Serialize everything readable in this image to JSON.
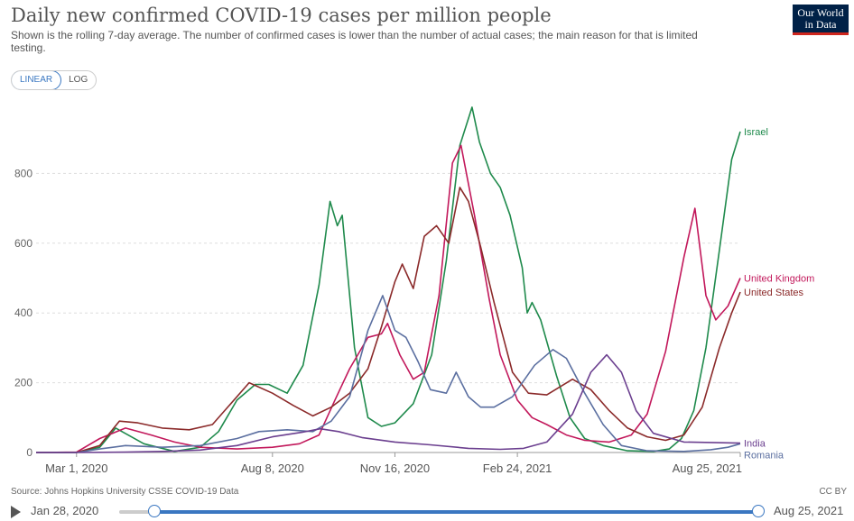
{
  "header": {
    "title": "Daily new confirmed COVID-19 cases per million people",
    "subtitle": "Shown is the rolling 7-day average. The number of confirmed cases is lower than the number of actual cases; the main reason for that is limited testing.",
    "logo_line1": "Our World",
    "logo_line2": "in Data"
  },
  "controls": {
    "linear_label": "LINEAR",
    "log_label": "LOG",
    "selected": "linear"
  },
  "footer": {
    "source": "Source: Johns Hopkins University CSSE COVID-19 Data",
    "license": "CC BY"
  },
  "timeline": {
    "start_label": "Jan 28, 2020",
    "end_label": "Aug 25, 2021"
  },
  "colors": {
    "Israel": "#1f8a4c",
    "United Kingdom": "#c2185b",
    "United States": "#8b2a2a",
    "Romania": "#5b6fa0",
    "India": "#6b3f8f",
    "grid": "#dddddd",
    "axis": "#999999"
  },
  "chart_data": {
    "type": "line",
    "title": "Daily new confirmed COVID-19 cases per million people",
    "ylim": [
      0,
      1000
    ],
    "yticks": [
      0,
      200,
      400,
      600,
      800
    ],
    "xlim": [
      "2020-01-28",
      "2021-08-25"
    ],
    "xticks": [
      {
        "date": "2020-03-01",
        "label": "Mar 1, 2020"
      },
      {
        "date": "2020-08-08",
        "label": "Aug 8, 2020"
      },
      {
        "date": "2020-11-16",
        "label": "Nov 16, 2020"
      },
      {
        "date": "2021-02-24",
        "label": "Feb 24, 2021"
      },
      {
        "date": "2021-08-25",
        "label": "Aug 25, 2021"
      }
    ],
    "series": [
      {
        "name": "Israel",
        "points": [
          [
            "2020-01-28",
            0
          ],
          [
            "2020-03-01",
            0
          ],
          [
            "2020-03-20",
            15
          ],
          [
            "2020-04-02",
            70
          ],
          [
            "2020-04-25",
            25
          ],
          [
            "2020-05-20",
            3
          ],
          [
            "2020-06-10",
            15
          ],
          [
            "2020-06-25",
            60
          ],
          [
            "2020-07-10",
            150
          ],
          [
            "2020-07-25",
            195
          ],
          [
            "2020-08-05",
            195
          ],
          [
            "2020-08-20",
            170
          ],
          [
            "2020-09-02",
            250
          ],
          [
            "2020-09-15",
            480
          ],
          [
            "2020-09-24",
            720
          ],
          [
            "2020-09-30",
            650
          ],
          [
            "2020-10-04",
            680
          ],
          [
            "2020-10-14",
            300
          ],
          [
            "2020-10-25",
            100
          ],
          [
            "2020-11-05",
            75
          ],
          [
            "2020-11-16",
            85
          ],
          [
            "2020-12-01",
            140
          ],
          [
            "2020-12-16",
            280
          ],
          [
            "2020-12-28",
            550
          ],
          [
            "2021-01-08",
            880
          ],
          [
            "2021-01-18",
            990
          ],
          [
            "2021-01-24",
            890
          ],
          [
            "2021-02-02",
            800
          ],
          [
            "2021-02-10",
            760
          ],
          [
            "2021-02-18",
            680
          ],
          [
            "2021-02-28",
            530
          ],
          [
            "2021-03-04",
            400
          ],
          [
            "2021-03-08",
            430
          ],
          [
            "2021-03-15",
            380
          ],
          [
            "2021-03-28",
            220
          ],
          [
            "2021-04-08",
            100
          ],
          [
            "2021-04-20",
            40
          ],
          [
            "2021-05-05",
            20
          ],
          [
            "2021-05-25",
            5
          ],
          [
            "2021-06-15",
            3
          ],
          [
            "2021-06-28",
            10
          ],
          [
            "2021-07-08",
            40
          ],
          [
            "2021-07-18",
            120
          ],
          [
            "2021-07-28",
            300
          ],
          [
            "2021-08-08",
            580
          ],
          [
            "2021-08-18",
            840
          ],
          [
            "2021-08-25",
            920
          ]
        ]
      },
      {
        "name": "United Kingdom",
        "points": [
          [
            "2020-01-28",
            0
          ],
          [
            "2020-03-01",
            1
          ],
          [
            "2020-03-20",
            40
          ],
          [
            "2020-04-10",
            70
          ],
          [
            "2020-05-01",
            50
          ],
          [
            "2020-05-20",
            30
          ],
          [
            "2020-06-10",
            15
          ],
          [
            "2020-07-10",
            10
          ],
          [
            "2020-08-08",
            15
          ],
          [
            "2020-08-30",
            25
          ],
          [
            "2020-09-15",
            50
          ],
          [
            "2020-09-28",
            150
          ],
          [
            "2020-10-10",
            240
          ],
          [
            "2020-10-25",
            330
          ],
          [
            "2020-11-05",
            340
          ],
          [
            "2020-11-10",
            370
          ],
          [
            "2020-11-20",
            280
          ],
          [
            "2020-12-01",
            210
          ],
          [
            "2020-12-10",
            230
          ],
          [
            "2020-12-22",
            450
          ],
          [
            "2021-01-02",
            830
          ],
          [
            "2021-01-09",
            880
          ],
          [
            "2021-01-20",
            680
          ],
          [
            "2021-02-01",
            440
          ],
          [
            "2021-02-10",
            280
          ],
          [
            "2021-02-24",
            150
          ],
          [
            "2021-03-08",
            100
          ],
          [
            "2021-03-20",
            80
          ],
          [
            "2021-04-05",
            50
          ],
          [
            "2021-04-20",
            35
          ],
          [
            "2021-05-10",
            30
          ],
          [
            "2021-05-28",
            50
          ],
          [
            "2021-06-10",
            110
          ],
          [
            "2021-06-25",
            290
          ],
          [
            "2021-07-10",
            560
          ],
          [
            "2021-07-19",
            700
          ],
          [
            "2021-07-28",
            450
          ],
          [
            "2021-08-05",
            380
          ],
          [
            "2021-08-15",
            420
          ],
          [
            "2021-08-25",
            500
          ]
        ]
      },
      {
        "name": "United States",
        "points": [
          [
            "2020-01-28",
            0
          ],
          [
            "2020-03-01",
            0
          ],
          [
            "2020-03-20",
            20
          ],
          [
            "2020-04-05",
            90
          ],
          [
            "2020-04-20",
            85
          ],
          [
            "2020-05-10",
            70
          ],
          [
            "2020-06-01",
            65
          ],
          [
            "2020-06-20",
            80
          ],
          [
            "2020-07-05",
            140
          ],
          [
            "2020-07-20",
            200
          ],
          [
            "2020-08-08",
            170
          ],
          [
            "2020-08-25",
            135
          ],
          [
            "2020-09-10",
            105
          ],
          [
            "2020-09-25",
            130
          ],
          [
            "2020-10-10",
            170
          ],
          [
            "2020-10-25",
            240
          ],
          [
            "2020-11-05",
            360
          ],
          [
            "2020-11-16",
            490
          ],
          [
            "2020-11-22",
            540
          ],
          [
            "2020-12-01",
            470
          ],
          [
            "2020-12-10",
            620
          ],
          [
            "2020-12-20",
            650
          ],
          [
            "2020-12-30",
            600
          ],
          [
            "2021-01-08",
            760
          ],
          [
            "2021-01-15",
            720
          ],
          [
            "2021-01-25",
            590
          ],
          [
            "2021-02-05",
            430
          ],
          [
            "2021-02-20",
            230
          ],
          [
            "2021-03-05",
            170
          ],
          [
            "2021-03-20",
            165
          ],
          [
            "2021-04-10",
            210
          ],
          [
            "2021-04-25,",
            180
          ],
          [
            "2021-05-10",
            120
          ],
          [
            "2021-05-25",
            70
          ],
          [
            "2021-06-10",
            45
          ],
          [
            "2021-06-25",
            35
          ],
          [
            "2021-07-10",
            50
          ],
          [
            "2021-07-25",
            130
          ],
          [
            "2021-08-08",
            300
          ],
          [
            "2021-08-18",
            400
          ],
          [
            "2021-08-25",
            460
          ]
        ]
      },
      {
        "name": "Romania",
        "points": [
          [
            "2020-01-28",
            0
          ],
          [
            "2020-03-01",
            0
          ],
          [
            "2020-03-20",
            10
          ],
          [
            "2020-04-10",
            20
          ],
          [
            "2020-05-10",
            15
          ],
          [
            "2020-06-10",
            20
          ],
          [
            "2020-07-10",
            40
          ],
          [
            "2020-07-28",
            60
          ],
          [
            "2020-08-20",
            65
          ],
          [
            "2020-09-10",
            60
          ],
          [
            "2020-09-25",
            90
          ],
          [
            "2020-10-10",
            160
          ],
          [
            "2020-10-25",
            350
          ],
          [
            "2020-11-06",
            450
          ],
          [
            "2020-11-16",
            350
          ],
          [
            "2020-11-25",
            330
          ],
          [
            "2020-12-05",
            260
          ],
          [
            "2020-12-15",
            180
          ],
          [
            "2020-12-28",
            170
          ],
          [
            "2021-01-05",
            230
          ],
          [
            "2021-01-15",
            160
          ],
          [
            "2021-01-25",
            130
          ],
          [
            "2021-02-05",
            130
          ],
          [
            "2021-02-20",
            160
          ],
          [
            "2021-03-10",
            250
          ],
          [
            "2021-03-25",
            295
          ],
          [
            "2021-04-05",
            270
          ],
          [
            "2021-04-20",
            170
          ],
          [
            "2021-05-05",
            80
          ],
          [
            "2021-05-20",
            20
          ],
          [
            "2021-06-10",
            5
          ],
          [
            "2021-07-10",
            3
          ],
          [
            "2021-08-01",
            8
          ],
          [
            "2021-08-15",
            15
          ],
          [
            "2021-08-25",
            25
          ]
        ]
      },
      {
        "name": "India",
        "points": [
          [
            "2020-01-28",
            0
          ],
          [
            "2020-03-01",
            0
          ],
          [
            "2020-04-10",
            1
          ],
          [
            "2020-05-10",
            3
          ],
          [
            "2020-06-10",
            7
          ],
          [
            "2020-07-10",
            20
          ],
          [
            "2020-08-08",
            45
          ],
          [
            "2020-09-01",
            58
          ],
          [
            "2020-09-16",
            68
          ],
          [
            "2020-10-01",
            60
          ],
          [
            "2020-10-20",
            43
          ],
          [
            "2020-11-16",
            30
          ],
          [
            "2020-12-15",
            22
          ],
          [
            "2021-01-15",
            12
          ],
          [
            "2021-02-10",
            9
          ],
          [
            "2021-03-01",
            12
          ],
          [
            "2021-03-20",
            30
          ],
          [
            "2021-04-10",
            110
          ],
          [
            "2021-04-25",
            230
          ],
          [
            "2021-05-08",
            280
          ],
          [
            "2021-05-20",
            230
          ],
          [
            "2021-06-01",
            120
          ],
          [
            "2021-06-15",
            55
          ],
          [
            "2021-07-10",
            30
          ],
          [
            "2021-08-25",
            27
          ]
        ]
      }
    ],
    "labels": [
      {
        "series": "Israel",
        "text": "Israel"
      },
      {
        "series": "United Kingdom",
        "text": "United Kingdom"
      },
      {
        "series": "United States",
        "text": "United States"
      },
      {
        "series": "Romania",
        "text": "Romania"
      },
      {
        "series": "India",
        "text": "India"
      }
    ]
  }
}
